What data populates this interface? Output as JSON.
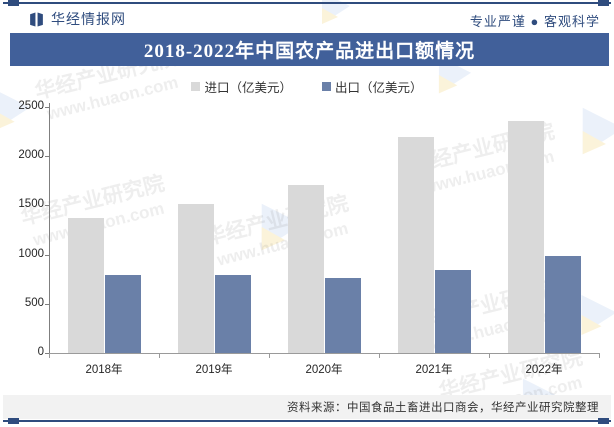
{
  "header": {
    "brand": "华经情报网",
    "tagline": "专业严谨 ● 客观科学"
  },
  "title": "2018-2022年中国农产品进出口额情况",
  "legend": [
    {
      "label": "进口（亿美元）",
      "color": "#D9D9D9"
    },
    {
      "label": "出口（亿美元）",
      "color": "#6A80A8"
    }
  ],
  "chart_data": {
    "type": "bar",
    "title": "2018-2022年中国农产品进出口额情况",
    "categories": [
      "2018年",
      "2019年",
      "2020年",
      "2021年",
      "2022年"
    ],
    "series": [
      {
        "name": "进口（亿美元）",
        "color": "#D9D9D9",
        "values": [
          1371,
          1510,
          1708,
          2198,
          2361
        ]
      },
      {
        "name": "出口（亿美元）",
        "color": "#6A80A8",
        "values": [
          797,
          791,
          760,
          844,
          983
        ]
      }
    ],
    "xlabel": "",
    "ylabel": "",
    "ylim": [
      0,
      2500
    ],
    "yticks": [
      0,
      500,
      1000,
      1500,
      2000,
      2500
    ],
    "grid": false,
    "legend_position": "top"
  },
  "footer": {
    "source": "资料来源：中国食品土畜进出口商会，华经产业研究院整理"
  },
  "watermark": {
    "line1": "华经产业研究院",
    "line2": "www.huaon.com"
  },
  "colors": {
    "navy": "#2F4C7E",
    "title_bar": "#41609A",
    "import_bar": "#D9D9D9",
    "export_bar": "#6A80A8"
  }
}
